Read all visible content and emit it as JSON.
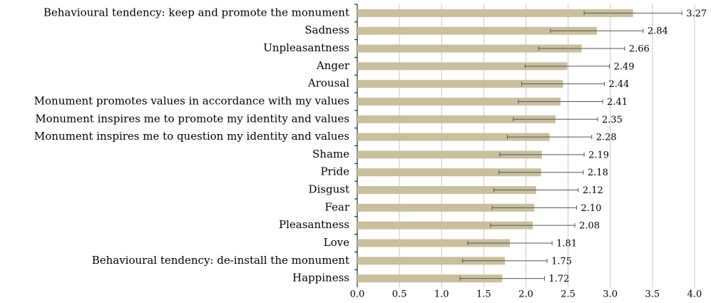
{
  "chart_data": {
    "type": "bar",
    "orientation": "horizontal",
    "categories": [
      "Behavioural tendency: keep and promote the monument",
      "Sadness",
      "Unpleasantness",
      "Anger",
      "Arousal",
      "Monument promotes values in accordance with my values",
      "Monument inspires me to promote my identity and values",
      "Monument inspires me to question my identity and values",
      "Shame",
      "Pride",
      "Disgust",
      "Fear",
      "Pleasantness",
      "Love",
      "Behavioural tendency: de-install the monument",
      "Happiness"
    ],
    "values": [
      3.27,
      2.84,
      2.66,
      2.49,
      2.44,
      2.41,
      2.35,
      2.28,
      2.19,
      2.18,
      2.12,
      2.1,
      2.08,
      1.81,
      1.75,
      1.72
    ],
    "value_labels": [
      "3.27",
      "2.84",
      "2.66",
      "2.49",
      "2.44",
      "2.41",
      "2.35",
      "2.28",
      "2.19",
      "2.18",
      "2.12",
      "2.10",
      "2.08",
      "1.81",
      "1.75",
      "1.72"
    ],
    "errors": [
      0.58,
      0.55,
      0.51,
      0.5,
      0.49,
      0.5,
      0.5,
      0.5,
      0.5,
      0.5,
      0.5,
      0.5,
      0.5,
      0.5,
      0.5,
      0.5
    ],
    "color": "#c9c09b",
    "xlim": [
      0,
      4
    ],
    "xticks": [
      {
        "value": 0,
        "label": "0.0"
      },
      0.5,
      {
        "value": 1,
        "label": "1.0"
      },
      1.5,
      {
        "value": 2,
        "label": "2.0"
      },
      2.5,
      {
        "value": 3,
        "label": "3.0"
      },
      3.5,
      {
        "value": 4,
        "label": "4.0"
      }
    ],
    "grid": true
  }
}
